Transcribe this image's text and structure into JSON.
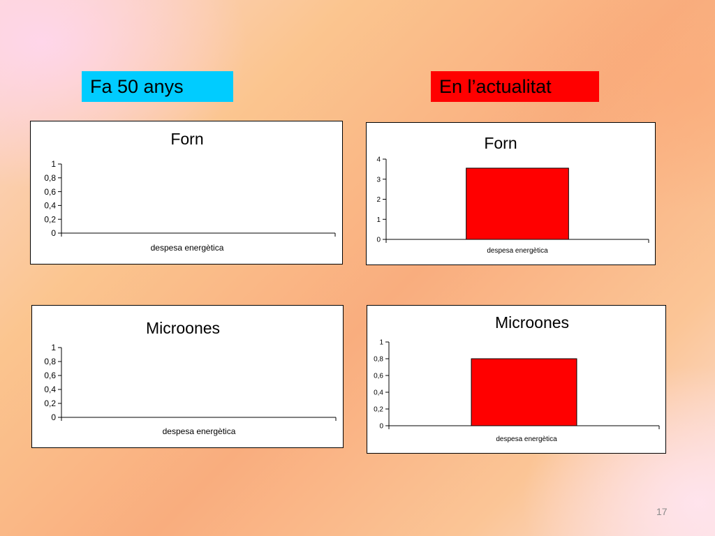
{
  "labels": {
    "left": {
      "text": "Fa 50 anys",
      "color": "#00ccff"
    },
    "right": {
      "text": "En l’actualitat",
      "color": "#ff0000"
    }
  },
  "page_number": "17",
  "chart_data": [
    {
      "type": "bar",
      "title": "Forn",
      "categories": [
        "despesa energètica"
      ],
      "series": [
        {
          "values": [
            0
          ]
        }
      ],
      "ylim": [
        0,
        1
      ],
      "yticks": [
        "0",
        "0,2",
        "0,4",
        "0,6",
        "0,8",
        "1"
      ],
      "grid": false,
      "bar_color": "#ff0000"
    },
    {
      "type": "bar",
      "title": "Forn",
      "categories": [
        "despesa energètica"
      ],
      "series": [
        {
          "values": [
            3.55
          ]
        }
      ],
      "ylim": [
        0,
        4
      ],
      "yticks": [
        "0",
        "1",
        "2",
        "3",
        "4"
      ],
      "grid": false,
      "bar_color": "#ff0000"
    },
    {
      "type": "bar",
      "title": "Microones",
      "categories": [
        "despesa energètica"
      ],
      "series": [
        {
          "values": [
            0
          ]
        }
      ],
      "ylim": [
        0,
        1
      ],
      "yticks": [
        "0",
        "0,2",
        "0,4",
        "0,6",
        "0,8",
        "1"
      ],
      "grid": false,
      "bar_color": "#ff0000"
    },
    {
      "type": "bar",
      "title": "Microones",
      "categories": [
        "despesa energètica"
      ],
      "series": [
        {
          "values": [
            0.8
          ]
        }
      ],
      "ylim": [
        0,
        1
      ],
      "yticks": [
        "0",
        "0,2",
        "0,4",
        "0,6",
        "0,8",
        "1"
      ],
      "grid": false,
      "bar_color": "#ff0000"
    }
  ]
}
